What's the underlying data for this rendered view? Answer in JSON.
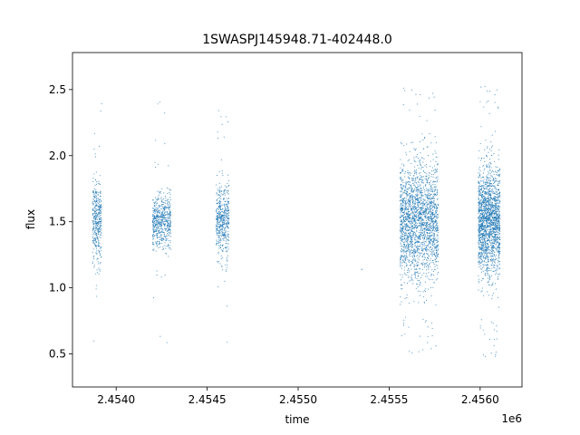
{
  "chart_data": {
    "type": "scatter",
    "title": "1SWASPJ145948.71-402448.0",
    "xlabel": "time",
    "ylabel": "flux",
    "x_offset_label": "1e6",
    "xlim": [
      2453760,
      2456230
    ],
    "ylim": [
      0.25,
      2.78
    ],
    "xticks": [
      2.454,
      2.4545,
      2.455,
      2.4555,
      2.456
    ],
    "xtick_labels": [
      "2.4540",
      "2.4545",
      "2.4550",
      "2.4555",
      "2.4560"
    ],
    "yticks": [
      0.5,
      1.0,
      1.5,
      2.0,
      2.5
    ],
    "ytick_labels": [
      "0.5",
      "1.0",
      "1.5",
      "2.0",
      "2.5"
    ],
    "grid": false,
    "marker_color": "#1f77b4",
    "series": [
      {
        "clusters": [
          {
            "x_range": [
              2453870,
              2453920
            ],
            "center": 1.5,
            "spread": 0.15,
            "extremes": [
              0.42,
              2.58
            ],
            "count": 420
          },
          {
            "x_range": [
              2454200,
              2454300
            ],
            "center": 1.5,
            "spread": 0.1,
            "extremes": [
              0.42,
              2.6
            ],
            "count": 600
          },
          {
            "x_range": [
              2454550,
              2454620
            ],
            "center": 1.5,
            "spread": 0.14,
            "extremes": [
              0.42,
              2.52
            ],
            "count": 520
          },
          {
            "x_range": [
              2455560,
              2455770
            ],
            "center": 1.5,
            "spread": 0.22,
            "extremes": [
              0.38,
              2.63
            ],
            "count": 2200
          },
          {
            "x_range": [
              2455990,
              2456110
            ],
            "center": 1.5,
            "spread": 0.2,
            "extremes": [
              0.37,
              2.66
            ],
            "count": 1900
          }
        ],
        "points": [
          {
            "x": 2455350,
            "y": 1.14
          }
        ]
      }
    ]
  }
}
